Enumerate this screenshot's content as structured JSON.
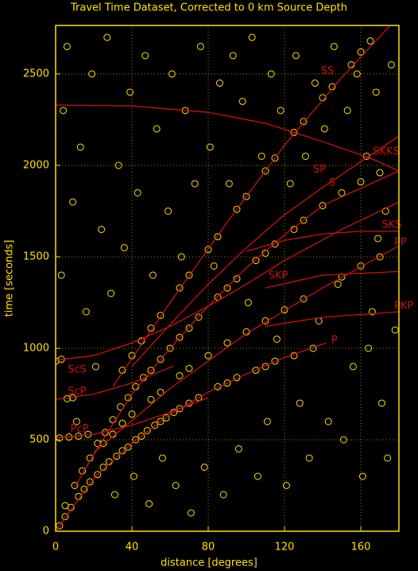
{
  "chart_data": {
    "type": "scatter",
    "title": "Travel Time Dataset, Corrected to 0 km Source Depth",
    "x_label": "distance [degrees]",
    "y_label": "time [seconds]",
    "xlim": [
      0,
      180
    ],
    "ylim": [
      0,
      2765
    ],
    "xticks": [
      0,
      40,
      80,
      120,
      160
    ],
    "yticks": [
      0,
      500,
      1000,
      1500,
      2000,
      2500
    ],
    "grid": true,
    "marker_color": "#ffe000",
    "curve_color": "#cc1010",
    "x": [
      2,
      5,
      8,
      12,
      15,
      18,
      22,
      25,
      28,
      32,
      35,
      38,
      42,
      45,
      48,
      52,
      55,
      58,
      62,
      65,
      70,
      75,
      85,
      90,
      95,
      105,
      110,
      115,
      125,
      135,
      5,
      10,
      14,
      18,
      22,
      26,
      30,
      34,
      38,
      42,
      46,
      50,
      55,
      60,
      65,
      70,
      75,
      85,
      90,
      95,
      105,
      110,
      115,
      125,
      130,
      140,
      150,
      160,
      170,
      35,
      40,
      45,
      50,
      55,
      65,
      70,
      80,
      85,
      95,
      100,
      110,
      115,
      125,
      130,
      140,
      145,
      155,
      160,
      165,
      25,
      30,
      35,
      40,
      50,
      55,
      65,
      70,
      80,
      90,
      100,
      110,
      120,
      130,
      150,
      160,
      170,
      3,
      4,
      6,
      9,
      11,
      13,
      16,
      19,
      21,
      24,
      27,
      29,
      31,
      33,
      36,
      39,
      41,
      43,
      47,
      49,
      51,
      53,
      56,
      59,
      61,
      63,
      66,
      68,
      71,
      73,
      76,
      78,
      81,
      83,
      86,
      88,
      91,
      93,
      96,
      98,
      101,
      103,
      106,
      108,
      111,
      113,
      116,
      118,
      121,
      123,
      126,
      128,
      131,
      133,
      136,
      138,
      141,
      143,
      146,
      148,
      151,
      153,
      156,
      158,
      161,
      163,
      166,
      168,
      171,
      173,
      176,
      178,
      174,
      169,
      164,
      0,
      3,
      6,
      9,
      2,
      7,
      12,
      17
    ],
    "values": [
      30,
      80,
      130,
      190,
      230,
      270,
      310,
      350,
      380,
      410,
      440,
      460,
      500,
      520,
      550,
      580,
      600,
      620,
      650,
      670,
      700,
      730,
      790,
      810,
      840,
      880,
      900,
      930,
      960,
      1000,
      140,
      250,
      330,
      400,
      480,
      540,
      610,
      680,
      730,
      790,
      840,
      880,
      940,
      1000,
      1060,
      1110,
      1170,
      1280,
      1330,
      1380,
      1480,
      1520,
      1570,
      1650,
      1700,
      1780,
      1850,
      1910,
      1960,
      880,
      960,
      1040,
      1110,
      1180,
      1330,
      1400,
      1540,
      1610,
      1760,
      1830,
      1970,
      2040,
      2180,
      2240,
      2370,
      2430,
      2550,
      2620,
      2680,
      480,
      530,
      590,
      640,
      720,
      760,
      850,
      890,
      960,
      1030,
      1090,
      1150,
      1210,
      1270,
      1390,
      1450,
      1500,
      1400,
      2300,
      2650,
      1800,
      600,
      2100,
      1200,
      2500,
      900,
      1650,
      2700,
      1300,
      200,
      2000,
      1550,
      2400,
      300,
      1850,
      2600,
      150,
      1400,
      2200,
      400,
      1750,
      2500,
      250,
      1500,
      2300,
      100,
      1900,
      2650,
      350,
      2100,
      1450,
      2450,
      200,
      1900,
      2600,
      450,
      2350,
      1250,
      2700,
      300,
      2050,
      600,
      2500,
      1050,
      2300,
      250,
      1900,
      2600,
      700,
      2050,
      400,
      2450,
      1150,
      2200,
      600,
      2650,
      1350,
      500,
      2300,
      900,
      2500,
      300,
      2050,
      1200,
      2400,
      700,
      1750,
      2550,
      1100,
      400,
      1600,
      1000,
      930,
      940,
      725,
      730,
      510,
      515,
      520,
      530
    ],
    "curves": [
      {
        "name": "SS",
        "x": [
          30,
          60,
          90,
          120,
          150,
          175
        ],
        "values": [
          790,
          1250,
          1690,
          2110,
          2480,
          2760
        ]
      },
      {
        "name": "SKKS",
        "x": [
          0,
          40,
          80,
          110,
          140,
          165,
          180
        ],
        "values": [
          2330,
          2325,
          2290,
          2230,
          2130,
          2040,
          1970
        ]
      },
      {
        "name": "SP",
        "x": [
          40,
          60,
          80,
          100,
          120,
          140,
          180
        ],
        "values": [
          900,
          1130,
          1350,
          1550,
          1730,
          1880,
          2160
        ]
      },
      {
        "name": "S",
        "x": [
          10,
          20,
          40,
          60,
          80,
          100,
          120,
          140,
          180
        ],
        "values": [
          240,
          420,
          750,
          1000,
          1230,
          1440,
          1620,
          1780,
          1970
        ]
      },
      {
        "name": "SKS",
        "x": [
          100,
          120,
          140,
          160,
          180
        ],
        "values": [
          1530,
          1590,
          1625,
          1640,
          1640
        ]
      },
      {
        "name": "PP",
        "x": [
          20,
          60,
          100,
          140,
          180
        ],
        "values": [
          430,
          780,
          1080,
          1330,
          1560
        ]
      },
      {
        "name": "SKP",
        "x": [
          110,
          140,
          180
        ],
        "values": [
          1330,
          1400,
          1420
        ]
      },
      {
        "name": "PKP",
        "x": [
          110,
          140,
          180
        ],
        "values": [
          1120,
          1170,
          1200
        ]
      },
      {
        "name": "P",
        "x": [
          0,
          20,
          40,
          60,
          80,
          100,
          120,
          142
        ],
        "values": [
          0,
          290,
          480,
          640,
          760,
          860,
          950,
          1030
        ]
      },
      {
        "name": "ScS",
        "x": [
          0,
          20,
          40,
          60,
          80,
          100,
          120,
          150,
          180
        ],
        "values": [
          935,
          960,
          1030,
          1120,
          1230,
          1350,
          1480,
          1650,
          1800
        ]
      },
      {
        "name": "ScP",
        "x": [
          0,
          20,
          40,
          62
        ],
        "values": [
          720,
          750,
          810,
          904
        ]
      },
      {
        "name": "PcP",
        "x": [
          0,
          20,
          40,
          60,
          80
        ],
        "values": [
          510,
          530,
          580,
          650,
          730
        ]
      }
    ]
  }
}
